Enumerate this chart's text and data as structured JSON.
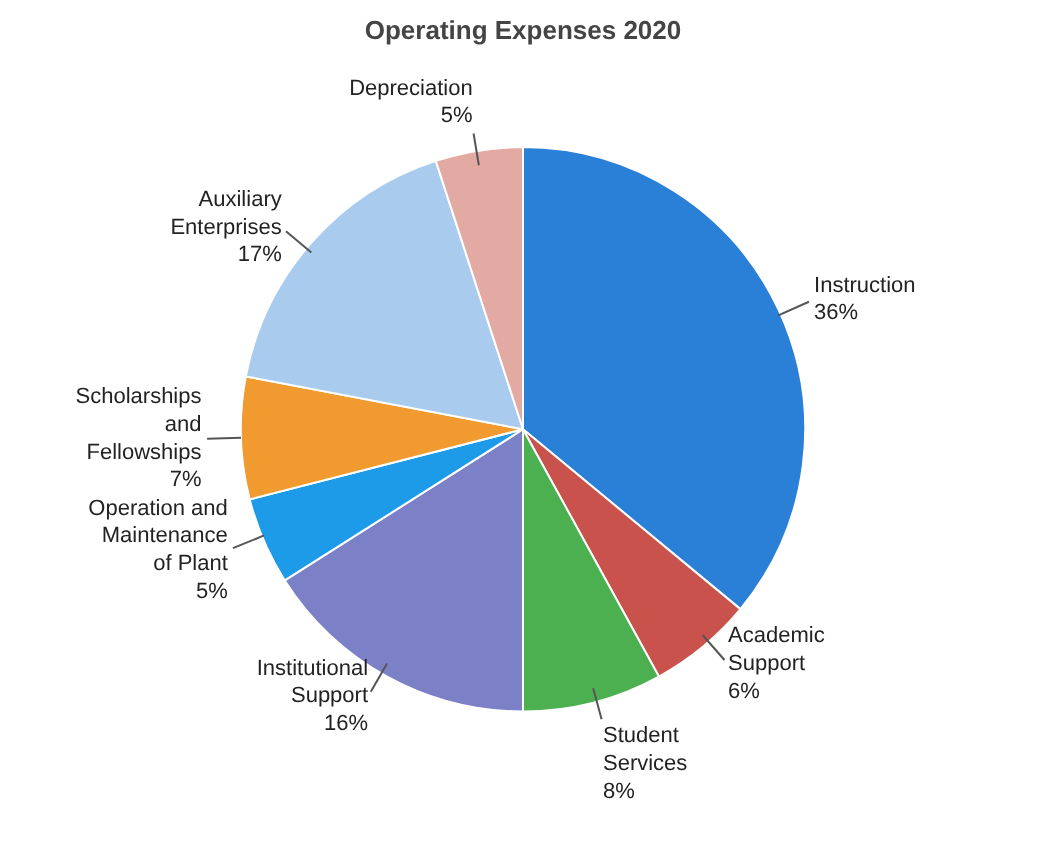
{
  "chart_data": {
    "type": "pie",
    "title": "Operating Expenses 2020",
    "categories": [
      "Instruction",
      "Academic Support",
      "Student Services",
      "Institutional Support",
      "Operation and Maintenance of Plant",
      "Scholarships and Fellowships",
      "Auxiliary Enterprises",
      "Depreciation"
    ],
    "values": [
      36,
      6,
      8,
      16,
      5,
      7,
      17,
      5
    ],
    "value_labels": [
      "36%",
      "6%",
      "8%",
      "16%",
      "5%",
      "7%",
      "17%",
      "5%"
    ],
    "colors": [
      "#2a7fd6",
      "#c9524c",
      "#4cb050",
      "#7c80c6",
      "#1e9be8",
      "#f09a30",
      "#a9cbee",
      "#e2aaa2"
    ]
  }
}
